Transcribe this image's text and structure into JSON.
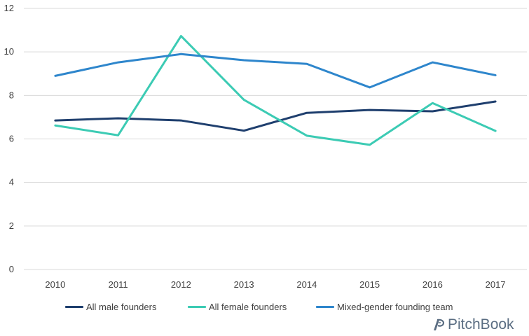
{
  "chart_data": {
    "type": "line",
    "x": [
      "2010",
      "2011",
      "2012",
      "2013",
      "2014",
      "2015",
      "2016",
      "2017"
    ],
    "series": [
      {
        "name": "All male founders",
        "color": "#1f3f6e",
        "values": [
          6.85,
          6.95,
          6.85,
          6.38,
          7.2,
          7.33,
          7.27,
          7.72
        ]
      },
      {
        "name": "All female founders",
        "color": "#3ccbb4",
        "values": [
          6.62,
          6.17,
          10.73,
          7.8,
          6.15,
          5.73,
          7.65,
          6.37
        ]
      },
      {
        "name": "Mixed-gender founding team",
        "color": "#2e86cc",
        "values": [
          8.9,
          9.52,
          9.9,
          9.62,
          9.45,
          8.37,
          9.52,
          8.93
        ]
      }
    ],
    "yticks": [
      "0",
      "2",
      "4",
      "6",
      "8",
      "10",
      "12"
    ],
    "ylim": [
      0,
      12
    ],
    "grid": true,
    "legend_position": "bottom"
  },
  "brand": {
    "name": "PitchBook",
    "icon": "pitchbook-logo-icon"
  }
}
